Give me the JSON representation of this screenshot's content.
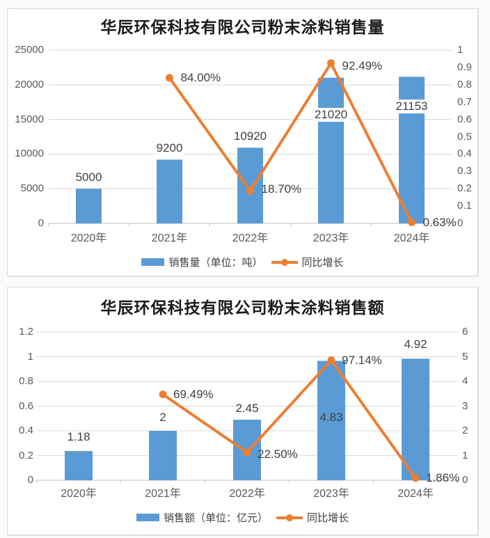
{
  "accent_colors": {
    "bar_blue": "#5B9BD5",
    "line_orange": "#ED7D31"
  },
  "chart_data": [
    {
      "type": "bar",
      "subtype": "bar+line-combo",
      "title": "华辰环保科技有限公司粉末涂料销售量",
      "categories": [
        "2020年",
        "2021年",
        "2022年",
        "2023年",
        "2024年"
      ],
      "bar_series": {
        "name": "销售量（单位：吨）",
        "axis": "left",
        "color": "#5B9BD5",
        "values": [
          5000,
          9200,
          10920,
          21020,
          21153
        ],
        "labels": [
          "5000",
          "9200",
          "10920",
          "21020",
          "21153"
        ]
      },
      "line_series": {
        "name": "同比增长",
        "axis": "right",
        "color": "#ED7D31",
        "values": [
          null,
          0.84,
          0.187,
          0.9249,
          0.0063
        ],
        "labels": [
          null,
          "84.00%",
          "18.70%",
          "92.49%",
          "0.63%"
        ]
      },
      "left_axis": {
        "min": 0,
        "max": 25000,
        "step": 5000,
        "tick_values": [
          0,
          5000,
          10000,
          15000,
          20000,
          25000
        ],
        "tick_labels": [
          "0",
          "5000",
          "10000",
          "15000",
          "20000",
          "25000"
        ]
      },
      "right_axis": {
        "min": 0,
        "max": 1,
        "step": 0.1,
        "tick_values": [
          0,
          0.1,
          0.2,
          0.3,
          0.4,
          0.5,
          0.6,
          0.7,
          0.8,
          0.9,
          1
        ],
        "tick_labels": [
          "0",
          "0.1",
          "0.2",
          "0.3",
          "0.4",
          "0.5",
          "0.6",
          "0.7",
          "0.8",
          "0.9",
          "1"
        ]
      },
      "grid": "horizontal",
      "legend_position": "bottom"
    },
    {
      "type": "bar",
      "subtype": "bar+line-combo",
      "title": "华辰环保科技有限公司粉末涂料销售额",
      "categories": [
        "2020年",
        "2021年",
        "2022年",
        "2023年",
        "2024年"
      ],
      "bar_series": {
        "name": "销售额（单位：亿元）",
        "axis": "right",
        "color": "#5B9BD5",
        "values": [
          1.18,
          2,
          2.45,
          4.83,
          4.92
        ],
        "labels": [
          "1.18",
          "2",
          "2.45",
          "4.83",
          "4.92"
        ]
      },
      "line_series": {
        "name": "同比增长",
        "axis": "left",
        "color": "#ED7D31",
        "values": [
          null,
          0.6949,
          0.225,
          0.9714,
          0.0186
        ],
        "labels": [
          null,
          "69.49%",
          "22.50%",
          "97.14%",
          "1.86%"
        ]
      },
      "left_axis": {
        "min": 0,
        "max": 1.2,
        "step": 0.2,
        "tick_values": [
          0,
          0.2,
          0.4,
          0.6,
          0.8,
          1,
          1.2
        ],
        "tick_labels": [
          "0",
          "0.2",
          "0.4",
          "0.6",
          "0.8",
          "1",
          "1.2"
        ]
      },
      "right_axis": {
        "min": 0,
        "max": 6,
        "step": 1,
        "tick_values": [
          0,
          1,
          2,
          3,
          4,
          5,
          6
        ],
        "tick_labels": [
          "0",
          "1",
          "2",
          "3",
          "4",
          "5",
          "6"
        ]
      },
      "grid": "horizontal",
      "legend_position": "bottom"
    }
  ]
}
